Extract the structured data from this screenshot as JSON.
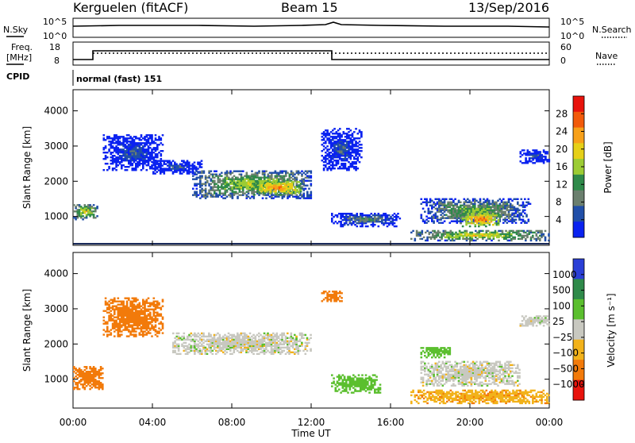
{
  "header": {
    "station": "Kerguelen (fitACF)",
    "beam": "Beam 15",
    "date": "13/Sep/2016"
  },
  "top_panels": {
    "nsky_label": "N.Sky",
    "nsearch_label": "N.Search",
    "nsky_ticks": [
      "10^5",
      "10^0"
    ],
    "freq_label": "Freq.",
    "freq_unit": "[MHz]",
    "freq_ticks": [
      "18",
      "8"
    ],
    "nave_label": "Nave",
    "nave_ticks": [
      "60",
      "0"
    ],
    "cpid_label": "CPID",
    "cpid_value": "normal (fast) 151"
  },
  "x_axis": {
    "label": "Time UT",
    "ticks": [
      "00:00",
      "04:00",
      "08:00",
      "12:00",
      "16:00",
      "20:00",
      "00:00"
    ]
  },
  "chart_data": [
    {
      "type": "heatmap",
      "panel": "power",
      "ylabel": "Slant Range [km]",
      "yticks": [
        1000,
        2000,
        3000,
        4000
      ],
      "ylim": [
        180,
        4600
      ],
      "xlim": [
        0,
        24
      ],
      "colorbar_label": "Power [dB]",
      "colorbar_ticks": [
        "28",
        "24",
        "20",
        "16",
        "12",
        "8",
        "4"
      ],
      "colorbar_colors": [
        "#e8130c",
        "#f25a0a",
        "#f7a01a",
        "#e6d018",
        "#9ccc34",
        "#2f8a4a",
        "#6b7f6e",
        "#214fa8",
        "#0a22f0"
      ],
      "regions": [
        {
          "t": [
            0.0,
            1.2
          ],
          "r": [
            900,
            1350
          ],
          "level": 20
        },
        {
          "t": [
            1.5,
            4.5
          ],
          "r": [
            2300,
            3300
          ],
          "level": 8
        },
        {
          "t": [
            4.0,
            6.5
          ],
          "r": [
            2200,
            2600
          ],
          "level": 8
        },
        {
          "t": [
            6.0,
            12.0
          ],
          "r": [
            1500,
            2300
          ],
          "level": 18
        },
        {
          "t": [
            9.0,
            11.5
          ],
          "r": [
            1600,
            2000
          ],
          "level": 26
        },
        {
          "t": [
            12.5,
            14.5
          ],
          "r": [
            2300,
            3500
          ],
          "level": 8
        },
        {
          "t": [
            13.0,
            16.5
          ],
          "r": [
            700,
            1100
          ],
          "level": 12
        },
        {
          "t": [
            17.5,
            23.0
          ],
          "r": [
            800,
            1500
          ],
          "level": 16
        },
        {
          "t": [
            19.5,
            21.5
          ],
          "r": [
            700,
            1100
          ],
          "level": 26
        },
        {
          "t": [
            17.0,
            24.0
          ],
          "r": [
            300,
            600
          ],
          "level": 20
        },
        {
          "t": [
            22.5,
            24.0
          ],
          "r": [
            2500,
            2900
          ],
          "level": 8
        }
      ]
    },
    {
      "type": "heatmap",
      "panel": "velocity",
      "ylabel": "Slant Range [km]",
      "yticks": [
        1000,
        2000,
        3000,
        4000
      ],
      "ylim": [
        180,
        4600
      ],
      "xlim": [
        0,
        24
      ],
      "colorbar_label": "Velocity [m s⁻¹]",
      "colorbar_ticks": [
        "1000",
        "500",
        "100",
        "25",
        "−25",
        "−100",
        "−500",
        "−1000"
      ],
      "colorbar_colors": [
        "#2a3fd6",
        "#2f8a4a",
        "#5bbf2e",
        "#c8c8c0",
        "#f2b21a",
        "#f27a0a",
        "#e8130c"
      ],
      "regions": [
        {
          "t": [
            0.0,
            1.5
          ],
          "r": [
            700,
            1350
          ],
          "level": -200
        },
        {
          "t": [
            1.5,
            4.5
          ],
          "r": [
            2200,
            3300
          ],
          "level": -150
        },
        {
          "t": [
            5.0,
            12.0
          ],
          "r": [
            1700,
            2300
          ],
          "level": 0
        },
        {
          "t": [
            12.5,
            13.5
          ],
          "r": [
            3200,
            3500
          ],
          "level": -150
        },
        {
          "t": [
            13.0,
            15.5
          ],
          "r": [
            600,
            1100
          ],
          "level": 60
        },
        {
          "t": [
            17.5,
            22.5
          ],
          "r": [
            800,
            1500
          ],
          "level": 0
        },
        {
          "t": [
            17.0,
            24.0
          ],
          "r": [
            300,
            700
          ],
          "level": -80
        },
        {
          "t": [
            17.5,
            19.0
          ],
          "r": [
            1600,
            1900
          ],
          "level": 60
        },
        {
          "t": [
            22.5,
            24.0
          ],
          "r": [
            2500,
            2800
          ],
          "level": 0
        }
      ]
    }
  ]
}
